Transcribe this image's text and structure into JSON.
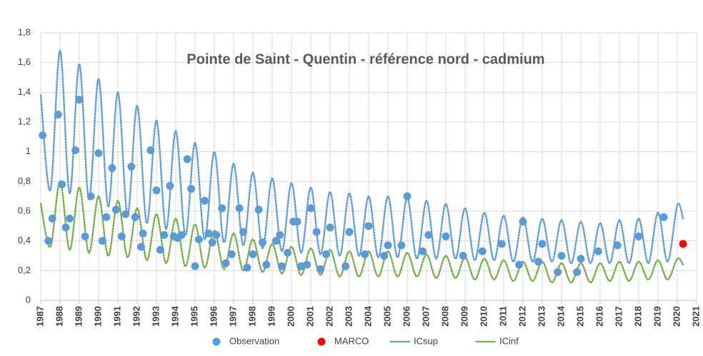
{
  "chart_data": {
    "type": "scatter",
    "title": "Pointe de Saint - Quentin - référence nord - cadmium",
    "xlim": [
      1987,
      2021
    ],
    "xticks": [
      1987,
      1988,
      1989,
      1990,
      1991,
      1992,
      1993,
      1994,
      1995,
      1996,
      1997,
      1998,
      1999,
      2000,
      2001,
      2002,
      2003,
      2004,
      2005,
      2006,
      2007,
      2008,
      2009,
      2010,
      2011,
      2012,
      2013,
      2014,
      2015,
      2016,
      2017,
      2018,
      2019,
      2020,
      2021
    ],
    "ylim": [
      0,
      1.8
    ],
    "yticks": [
      0,
      {
        "value": 0.2,
        "label": "0,2"
      },
      {
        "value": 0.4,
        "label": "0,4"
      },
      {
        "value": 0.6,
        "label": "0,6"
      },
      {
        "value": 0.8,
        "label": "0,8"
      },
      1,
      {
        "value": 1.2,
        "label": "1,2"
      },
      {
        "value": 1.4,
        "label": "1,4"
      },
      {
        "value": 1.6,
        "label": "1,6"
      },
      {
        "value": 1.8,
        "label": "1,8"
      }
    ],
    "grid": true,
    "legend": "bottom",
    "series": [
      {
        "name": "Observation",
        "color": "#5b9bd5",
        "style": "marker",
        "x": [
          1987.1,
          1987.4,
          1987.6,
          1987.9,
          1988.1,
          1988.3,
          1988.5,
          1988.8,
          1989.0,
          1989.3,
          1989.6,
          1990.0,
          1990.2,
          1990.4,
          1990.7,
          1990.9,
          1991.2,
          1991.4,
          1991.7,
          1991.9,
          1992.2,
          1992.3,
          1992.7,
          1993.0,
          1993.2,
          1993.4,
          1993.7,
          1993.9,
          1994.1,
          1994.3,
          1994.6,
          1994.8,
          1995.0,
          1995.2,
          1995.5,
          1995.7,
          1995.9,
          1996.1,
          1996.4,
          1996.6,
          1996.9,
          1997.3,
          1997.5,
          1997.7,
          1998.0,
          1998.3,
          1998.5,
          1998.7,
          1999.2,
          1999.4,
          1999.5,
          1999.8,
          2000.1,
          2000.3,
          2000.5,
          2000.8,
          2001.0,
          2001.3,
          2001.5,
          2001.8,
          2002.0,
          2002.8,
          2003.0,
          2003.8,
          2004.0,
          2004.8,
          2005.0,
          2005.7,
          2006.0,
          2006.8,
          2007.1,
          2008.0,
          2008.9,
          2009.9,
          2010.9,
          2011.8,
          2012.0,
          2012.8,
          2013.0,
          2013.8,
          2014.0,
          2014.8,
          2015.0,
          2015.9,
          2016.9,
          2018.0,
          2019.3
        ],
        "values": [
          1.11,
          0.4,
          0.55,
          1.25,
          0.78,
          0.49,
          0.55,
          1.01,
          1.35,
          0.43,
          0.7,
          0.99,
          0.4,
          0.56,
          0.89,
          0.61,
          0.43,
          0.58,
          0.9,
          0.56,
          0.36,
          0.45,
          1.01,
          0.74,
          0.34,
          0.44,
          0.77,
          0.43,
          0.42,
          0.44,
          0.95,
          0.75,
          0.23,
          0.41,
          0.67,
          0.45,
          0.39,
          0.44,
          0.62,
          0.25,
          0.31,
          0.62,
          0.46,
          0.22,
          0.31,
          0.61,
          0.39,
          0.24,
          0.4,
          0.44,
          0.23,
          0.32,
          0.53,
          0.53,
          0.23,
          0.24,
          0.62,
          0.46,
          0.21,
          0.31,
          0.49,
          0.23,
          0.46,
          0.31,
          0.5,
          0.3,
          0.37,
          0.37,
          0.7,
          0.33,
          0.44,
          0.43,
          0.3,
          0.33,
          0.38,
          0.24,
          0.53,
          0.26,
          0.38,
          0.19,
          0.3,
          0.19,
          0.28,
          0.33,
          0.37,
          0.43,
          0.56
        ]
      },
      {
        "name": "MARCO",
        "color": "#ff0000",
        "style": "marker",
        "x": [
          2020.3
        ],
        "values": [
          0.38
        ]
      },
      {
        "name": "ICsup",
        "color": "#5b9bd5",
        "style": "dotted-line",
        "x": [
          1987,
          1987.5,
          1988,
          1988.5,
          1989,
          1989.5,
          1990,
          1990.5,
          1991,
          1991.5,
          1992,
          1992.5,
          1993,
          1993.5,
          1994,
          1994.5,
          1995,
          1995.5,
          1996,
          1996.5,
          1997,
          1997.5,
          1998,
          1998.5,
          1999,
          1999.5,
          2000,
          2000.5,
          2001,
          2001.5,
          2002,
          2002.5,
          2003,
          2003.5,
          2004,
          2004.5,
          2005,
          2005.5,
          2006,
          2006.5,
          2007,
          2007.5,
          2008,
          2008.5,
          2009,
          2009.5,
          2010,
          2010.5,
          2011,
          2011.5,
          2012,
          2012.5,
          2013,
          2013.5,
          2014,
          2014.5,
          2015,
          2015.5,
          2016,
          2016.5,
          2017,
          2017.5,
          2018,
          2018.5,
          2019,
          2019.5,
          2020,
          2020.3
        ],
        "values": [
          1.38,
          0.74,
          1.68,
          0.72,
          1.59,
          0.68,
          1.49,
          0.63,
          1.4,
          0.58,
          1.31,
          0.52,
          1.21,
          0.48,
          1.14,
          0.44,
          1.06,
          0.41,
          1.0,
          0.39,
          0.92,
          0.37,
          0.86,
          0.35,
          0.82,
          0.33,
          0.79,
          0.32,
          0.76,
          0.31,
          0.73,
          0.3,
          0.72,
          0.3,
          0.7,
          0.29,
          0.7,
          0.29,
          0.69,
          0.28,
          0.67,
          0.28,
          0.65,
          0.28,
          0.62,
          0.27,
          0.59,
          0.27,
          0.57,
          0.26,
          0.56,
          0.26,
          0.55,
          0.26,
          0.54,
          0.25,
          0.53,
          0.25,
          0.52,
          0.25,
          0.54,
          0.25,
          0.55,
          0.25,
          0.59,
          0.26,
          0.64,
          0.55
        ]
      },
      {
        "name": "ICinf",
        "color": "#70ad47",
        "style": "dotted-line",
        "x": [
          1987,
          1987.5,
          1988,
          1988.5,
          1989,
          1989.5,
          1990,
          1990.5,
          1991,
          1991.5,
          1992,
          1992.5,
          1993,
          1993.5,
          1994,
          1994.5,
          1995,
          1995.5,
          1996,
          1996.5,
          1997,
          1997.5,
          1998,
          1998.5,
          1999,
          1999.5,
          2000,
          2000.5,
          2001,
          2001.5,
          2002,
          2002.5,
          2003,
          2003.5,
          2004,
          2004.5,
          2005,
          2005.5,
          2006,
          2006.5,
          2007,
          2007.5,
          2008,
          2008.5,
          2009,
          2009.5,
          2010,
          2010.5,
          2011,
          2011.5,
          2012,
          2012.5,
          2013,
          2013.5,
          2014,
          2014.5,
          2015,
          2015.5,
          2016,
          2016.5,
          2017,
          2017.5,
          2018,
          2018.5,
          2019,
          2019.5,
          2020,
          2020.3
        ],
        "values": [
          0.65,
          0.36,
          0.8,
          0.34,
          0.76,
          0.32,
          0.7,
          0.3,
          0.67,
          0.29,
          0.62,
          0.27,
          0.58,
          0.25,
          0.55,
          0.23,
          0.51,
          0.22,
          0.47,
          0.21,
          0.45,
          0.2,
          0.41,
          0.19,
          0.38,
          0.18,
          0.36,
          0.17,
          0.35,
          0.17,
          0.34,
          0.16,
          0.33,
          0.16,
          0.33,
          0.16,
          0.33,
          0.16,
          0.32,
          0.16,
          0.31,
          0.15,
          0.3,
          0.15,
          0.29,
          0.14,
          0.28,
          0.14,
          0.27,
          0.13,
          0.26,
          0.13,
          0.26,
          0.12,
          0.25,
          0.12,
          0.25,
          0.12,
          0.25,
          0.13,
          0.26,
          0.13,
          0.26,
          0.14,
          0.27,
          0.14,
          0.28,
          0.24
        ]
      }
    ]
  }
}
